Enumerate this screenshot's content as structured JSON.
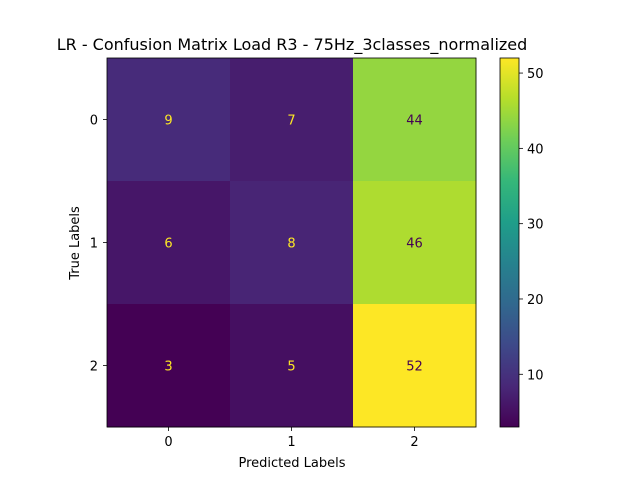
{
  "chart_data": {
    "type": "heatmap",
    "title": "LR - Confusion Matrix Load R3 - 75Hz_3classes_normalized",
    "xlabel": "Predicted Labels",
    "ylabel": "True Labels",
    "x_categories": [
      "0",
      "1",
      "2"
    ],
    "y_categories": [
      "0",
      "1",
      "2"
    ],
    "values": [
      [
        9,
        7,
        44
      ],
      [
        6,
        8,
        46
      ],
      [
        3,
        5,
        52
      ]
    ],
    "colormap": "viridis",
    "colorbar": {
      "min": 3,
      "max": 52,
      "ticks": [
        10,
        20,
        30,
        40,
        50
      ],
      "tick_labels": [
        "10",
        "20",
        "30",
        "40",
        "50"
      ]
    },
    "text_color_dark_cells": "#fde725",
    "text_color_light_cells": "#440154"
  }
}
